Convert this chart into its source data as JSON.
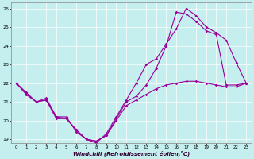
{
  "xlabel": "Windchill (Refroidissement éolien,°C)",
  "background_color": "#c5eeee",
  "line_color": "#990099",
  "xlim": [
    -0.5,
    23.5
  ],
  "ylim": [
    18.8,
    26.3
  ],
  "xticks": [
    0,
    1,
    2,
    3,
    4,
    5,
    6,
    7,
    8,
    9,
    10,
    11,
    12,
    13,
    14,
    15,
    16,
    17,
    18,
    19,
    20,
    21,
    22,
    23
  ],
  "yticks": [
    19,
    20,
    21,
    22,
    23,
    24,
    25,
    26
  ],
  "series": [
    {
      "x": [
        0,
        1,
        2,
        3,
        4,
        5,
        6,
        7,
        8,
        9,
        10,
        11,
        12,
        13,
        14,
        15,
        16,
        17,
        18,
        19,
        20,
        21,
        22,
        23
      ],
      "y": [
        22.0,
        21.5,
        21.0,
        21.2,
        20.2,
        20.2,
        19.4,
        19.0,
        18.8,
        19.3,
        20.2,
        21.1,
        22.0,
        23.0,
        23.3,
        24.1,
        24.9,
        26.0,
        25.6,
        25.0,
        24.7,
        24.3,
        23.1,
        22.0
      ]
    },
    {
      "x": [
        0,
        1,
        2,
        3,
        4,
        5,
        6,
        7,
        8,
        9,
        10,
        11,
        12,
        13,
        14,
        15,
        16,
        17,
        18,
        19,
        20,
        21,
        22,
        23
      ],
      "y": [
        22.0,
        21.4,
        21.0,
        21.1,
        20.2,
        20.1,
        19.5,
        19.0,
        18.9,
        19.2,
        20.1,
        21.0,
        21.3,
        21.9,
        22.8,
        24.0,
        25.8,
        25.7,
        25.3,
        24.8,
        24.6,
        21.9,
        21.9,
        22.0
      ]
    },
    {
      "x": [
        0,
        1,
        2,
        3,
        4,
        5,
        6,
        7,
        8,
        9,
        10,
        11,
        12,
        13,
        14,
        15,
        16,
        17,
        18,
        19,
        20,
        21,
        22,
        23
      ],
      "y": [
        22.0,
        21.4,
        21.0,
        21.1,
        20.1,
        20.1,
        19.5,
        19.0,
        18.9,
        19.2,
        20.0,
        20.8,
        21.1,
        21.4,
        21.7,
        21.9,
        22.0,
        22.1,
        22.1,
        22.0,
        21.9,
        21.8,
        21.8,
        22.0
      ]
    }
  ]
}
